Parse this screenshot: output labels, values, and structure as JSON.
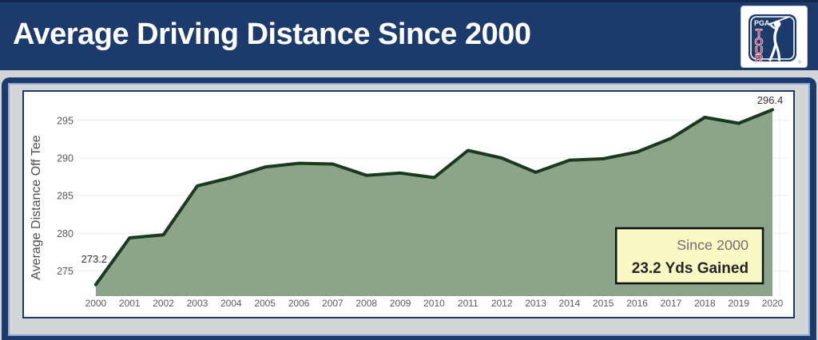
{
  "header": {
    "title": "Average Driving Distance Since 2000",
    "logo": {
      "pga": "PGA",
      "tour_letters": [
        "T",
        "O",
        "U",
        "R"
      ],
      "registered": "®"
    }
  },
  "colors": {
    "banner_navy": "#1c3a6b",
    "frame_navy": "#1c3a6b",
    "inner_highlight_blue": "#8ea9d1",
    "page_gray": "#d4d5d7",
    "panel_white": "#ffffff",
    "line_dark_green": "#1a3a1d",
    "area_sage_green": "#8ca48a",
    "annotation_yellow": "#f9f9c6",
    "annotation_border": "#111111",
    "tick_gray": "#5a5a5a",
    "logo_red": "#c8102e"
  },
  "chart_data": {
    "type": "area",
    "title": "Average Driving Distance Since 2000",
    "categories": [
      "2000",
      "2001",
      "2002",
      "2003",
      "2004",
      "2005",
      "2006",
      "2007",
      "2008",
      "2009",
      "2010",
      "2011",
      "2012",
      "2013",
      "2014",
      "2015",
      "2016",
      "2017",
      "2018",
      "2019",
      "2020"
    ],
    "values": [
      273.2,
      279.4,
      279.8,
      286.3,
      287.4,
      288.8,
      289.3,
      289.2,
      287.7,
      288.0,
      287.4,
      291.0,
      290.0,
      288.1,
      289.7,
      289.9,
      290.8,
      292.6,
      295.4,
      294.6,
      296.4
    ],
    "xlabel": "",
    "ylabel": "Average Distance Off Tee",
    "yticks": [
      275,
      280,
      285,
      290,
      295
    ],
    "ylim": [
      271.5,
      299
    ],
    "grid": "horizontal only, very light gray",
    "legend": "none",
    "point_labels": {
      "first": "273.2",
      "last": "296.4"
    },
    "annotation": {
      "line1": "Since 2000",
      "line2": "23.2 Yds Gained"
    }
  }
}
